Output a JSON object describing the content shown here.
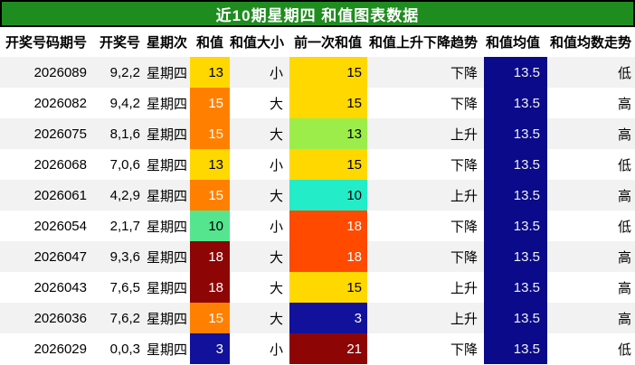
{
  "title": "近10期星期四 和值图表数据",
  "colors": {
    "title_bg": "#1f8c1f",
    "title_fg": "#ffffff",
    "row_odd_bg": "#f2f2f2",
    "row_even_bg": "#ffffff",
    "yellow": "#ffd800",
    "orange": "#ff8000",
    "orange_red": "#ff4a00",
    "dark_red": "#8e0505",
    "navy_value": "#11119b",
    "navy_avg": "#0a0a8a",
    "light_green": "#9ced4a",
    "spring_green": "#55e58e",
    "cyan": "#22edc8"
  },
  "table": {
    "headers": [
      "开奖号码期号",
      "开奖号",
      "星期次",
      "和值",
      "和值大小",
      "前一次和值",
      "和值上升下降趋势",
      "和值均值",
      "和值均数走势"
    ],
    "column_keys": [
      "period",
      "numbers",
      "weekday",
      "sum",
      "size",
      "prev",
      "trend",
      "avg",
      "avg_trend"
    ],
    "rows": [
      {
        "period": "2026089",
        "numbers": "9,2,2",
        "weekday": "星期四",
        "sum": {
          "v": "13",
          "bg": "#ffd800",
          "fg": "#000000"
        },
        "size": "小",
        "prev": {
          "v": "15",
          "bg": "#ffd800",
          "fg": "#000000"
        },
        "trend": "下降",
        "avg": {
          "v": "13.5",
          "bg": "#0a0a8a",
          "fg": "#f2f2f2"
        },
        "avg_trend": "低"
      },
      {
        "period": "2026082",
        "numbers": "9,4,2",
        "weekday": "星期四",
        "sum": {
          "v": "15",
          "bg": "#ff8000",
          "fg": "#ffffff"
        },
        "size": "大",
        "prev": {
          "v": "15",
          "bg": "#ffd800",
          "fg": "#000000"
        },
        "trend": "下降",
        "avg": {
          "v": "13.5",
          "bg": "#0a0a8a",
          "fg": "#f2f2f2"
        },
        "avg_trend": "高"
      },
      {
        "period": "2026075",
        "numbers": "8,1,6",
        "weekday": "星期四",
        "sum": {
          "v": "15",
          "bg": "#ff8000",
          "fg": "#ffffff"
        },
        "size": "大",
        "prev": {
          "v": "13",
          "bg": "#9ced4a",
          "fg": "#000000"
        },
        "trend": "上升",
        "avg": {
          "v": "13.5",
          "bg": "#0a0a8a",
          "fg": "#f2f2f2"
        },
        "avg_trend": "高"
      },
      {
        "period": "2026068",
        "numbers": "7,0,6",
        "weekday": "星期四",
        "sum": {
          "v": "13",
          "bg": "#ffd800",
          "fg": "#000000"
        },
        "size": "小",
        "prev": {
          "v": "15",
          "bg": "#ffd800",
          "fg": "#000000"
        },
        "trend": "下降",
        "avg": {
          "v": "13.5",
          "bg": "#0a0a8a",
          "fg": "#f2f2f2"
        },
        "avg_trend": "低"
      },
      {
        "period": "2026061",
        "numbers": "4,2,9",
        "weekday": "星期四",
        "sum": {
          "v": "15",
          "bg": "#ff8000",
          "fg": "#ffffff"
        },
        "size": "大",
        "prev": {
          "v": "10",
          "bg": "#22edc8",
          "fg": "#000000"
        },
        "trend": "上升",
        "avg": {
          "v": "13.5",
          "bg": "#0a0a8a",
          "fg": "#f2f2f2"
        },
        "avg_trend": "高"
      },
      {
        "period": "2026054",
        "numbers": "2,1,7",
        "weekday": "星期四",
        "sum": {
          "v": "10",
          "bg": "#55e58e",
          "fg": "#000000"
        },
        "size": "小",
        "prev": {
          "v": "18",
          "bg": "#ff4a00",
          "fg": "#ffffff"
        },
        "trend": "下降",
        "avg": {
          "v": "13.5",
          "bg": "#0a0a8a",
          "fg": "#f2f2f2"
        },
        "avg_trend": "低"
      },
      {
        "period": "2026047",
        "numbers": "9,3,6",
        "weekday": "星期四",
        "sum": {
          "v": "18",
          "bg": "#8e0505",
          "fg": "#ffffff"
        },
        "size": "大",
        "prev": {
          "v": "18",
          "bg": "#ff4a00",
          "fg": "#ffffff"
        },
        "trend": "下降",
        "avg": {
          "v": "13.5",
          "bg": "#0a0a8a",
          "fg": "#f2f2f2"
        },
        "avg_trend": "高"
      },
      {
        "period": "2026043",
        "numbers": "7,6,5",
        "weekday": "星期四",
        "sum": {
          "v": "18",
          "bg": "#8e0505",
          "fg": "#ffffff"
        },
        "size": "大",
        "prev": {
          "v": "15",
          "bg": "#ffd800",
          "fg": "#000000"
        },
        "trend": "上升",
        "avg": {
          "v": "13.5",
          "bg": "#0a0a8a",
          "fg": "#f2f2f2"
        },
        "avg_trend": "高"
      },
      {
        "period": "2026036",
        "numbers": "7,6,2",
        "weekday": "星期四",
        "sum": {
          "v": "15",
          "bg": "#ff8000",
          "fg": "#ffffff"
        },
        "size": "大",
        "prev": {
          "v": "3",
          "bg": "#11119b",
          "fg": "#ffffff"
        },
        "trend": "上升",
        "avg": {
          "v": "13.5",
          "bg": "#0a0a8a",
          "fg": "#f2f2f2"
        },
        "avg_trend": "高"
      },
      {
        "period": "2026029",
        "numbers": "0,0,3",
        "weekday": "星期四",
        "sum": {
          "v": "3",
          "bg": "#11119b",
          "fg": "#ffffff"
        },
        "size": "小",
        "prev": {
          "v": "21",
          "bg": "#8e0505",
          "fg": "#ffffff"
        },
        "trend": "下降",
        "avg": {
          "v": "13.5",
          "bg": "#0a0a8a",
          "fg": "#f2f2f2"
        },
        "avg_trend": "低"
      }
    ]
  },
  "chart_data": {
    "type": "table",
    "title": "近10期星期四 和值图表数据",
    "columns": [
      "开奖号码期号",
      "开奖号",
      "星期次",
      "和值",
      "和值大小",
      "前一次和值",
      "和值上升下降趋势",
      "和值均值",
      "和值均数走势"
    ],
    "rows": [
      [
        "2026089",
        "9,2,2",
        "星期四",
        "13",
        "小",
        "15",
        "下降",
        "13.5",
        "低"
      ],
      [
        "2026082",
        "9,4,2",
        "星期四",
        "15",
        "大",
        "15",
        "下降",
        "13.5",
        "高"
      ],
      [
        "2026075",
        "8,1,6",
        "星期四",
        "15",
        "大",
        "13",
        "上升",
        "13.5",
        "高"
      ],
      [
        "2026068",
        "7,0,6",
        "星期四",
        "13",
        "小",
        "15",
        "下降",
        "13.5",
        "低"
      ],
      [
        "2026061",
        "4,2,9",
        "星期四",
        "15",
        "大",
        "10",
        "上升",
        "13.5",
        "高"
      ],
      [
        "2026054",
        "2,1,7",
        "星期四",
        "10",
        "小",
        "18",
        "下降",
        "13.5",
        "低"
      ],
      [
        "2026047",
        "9,3,6",
        "星期四",
        "18",
        "大",
        "18",
        "下降",
        "13.5",
        "高"
      ],
      [
        "2026043",
        "7,6,5",
        "星期四",
        "18",
        "大",
        "15",
        "上升",
        "13.5",
        "高"
      ],
      [
        "2026036",
        "7,6,2",
        "星期四",
        "15",
        "大",
        "3",
        "上升",
        "13.5",
        "高"
      ],
      [
        "2026029",
        "0,0,3",
        "星期四",
        "3",
        "小",
        "21",
        "下降",
        "13.5",
        "低"
      ]
    ]
  }
}
